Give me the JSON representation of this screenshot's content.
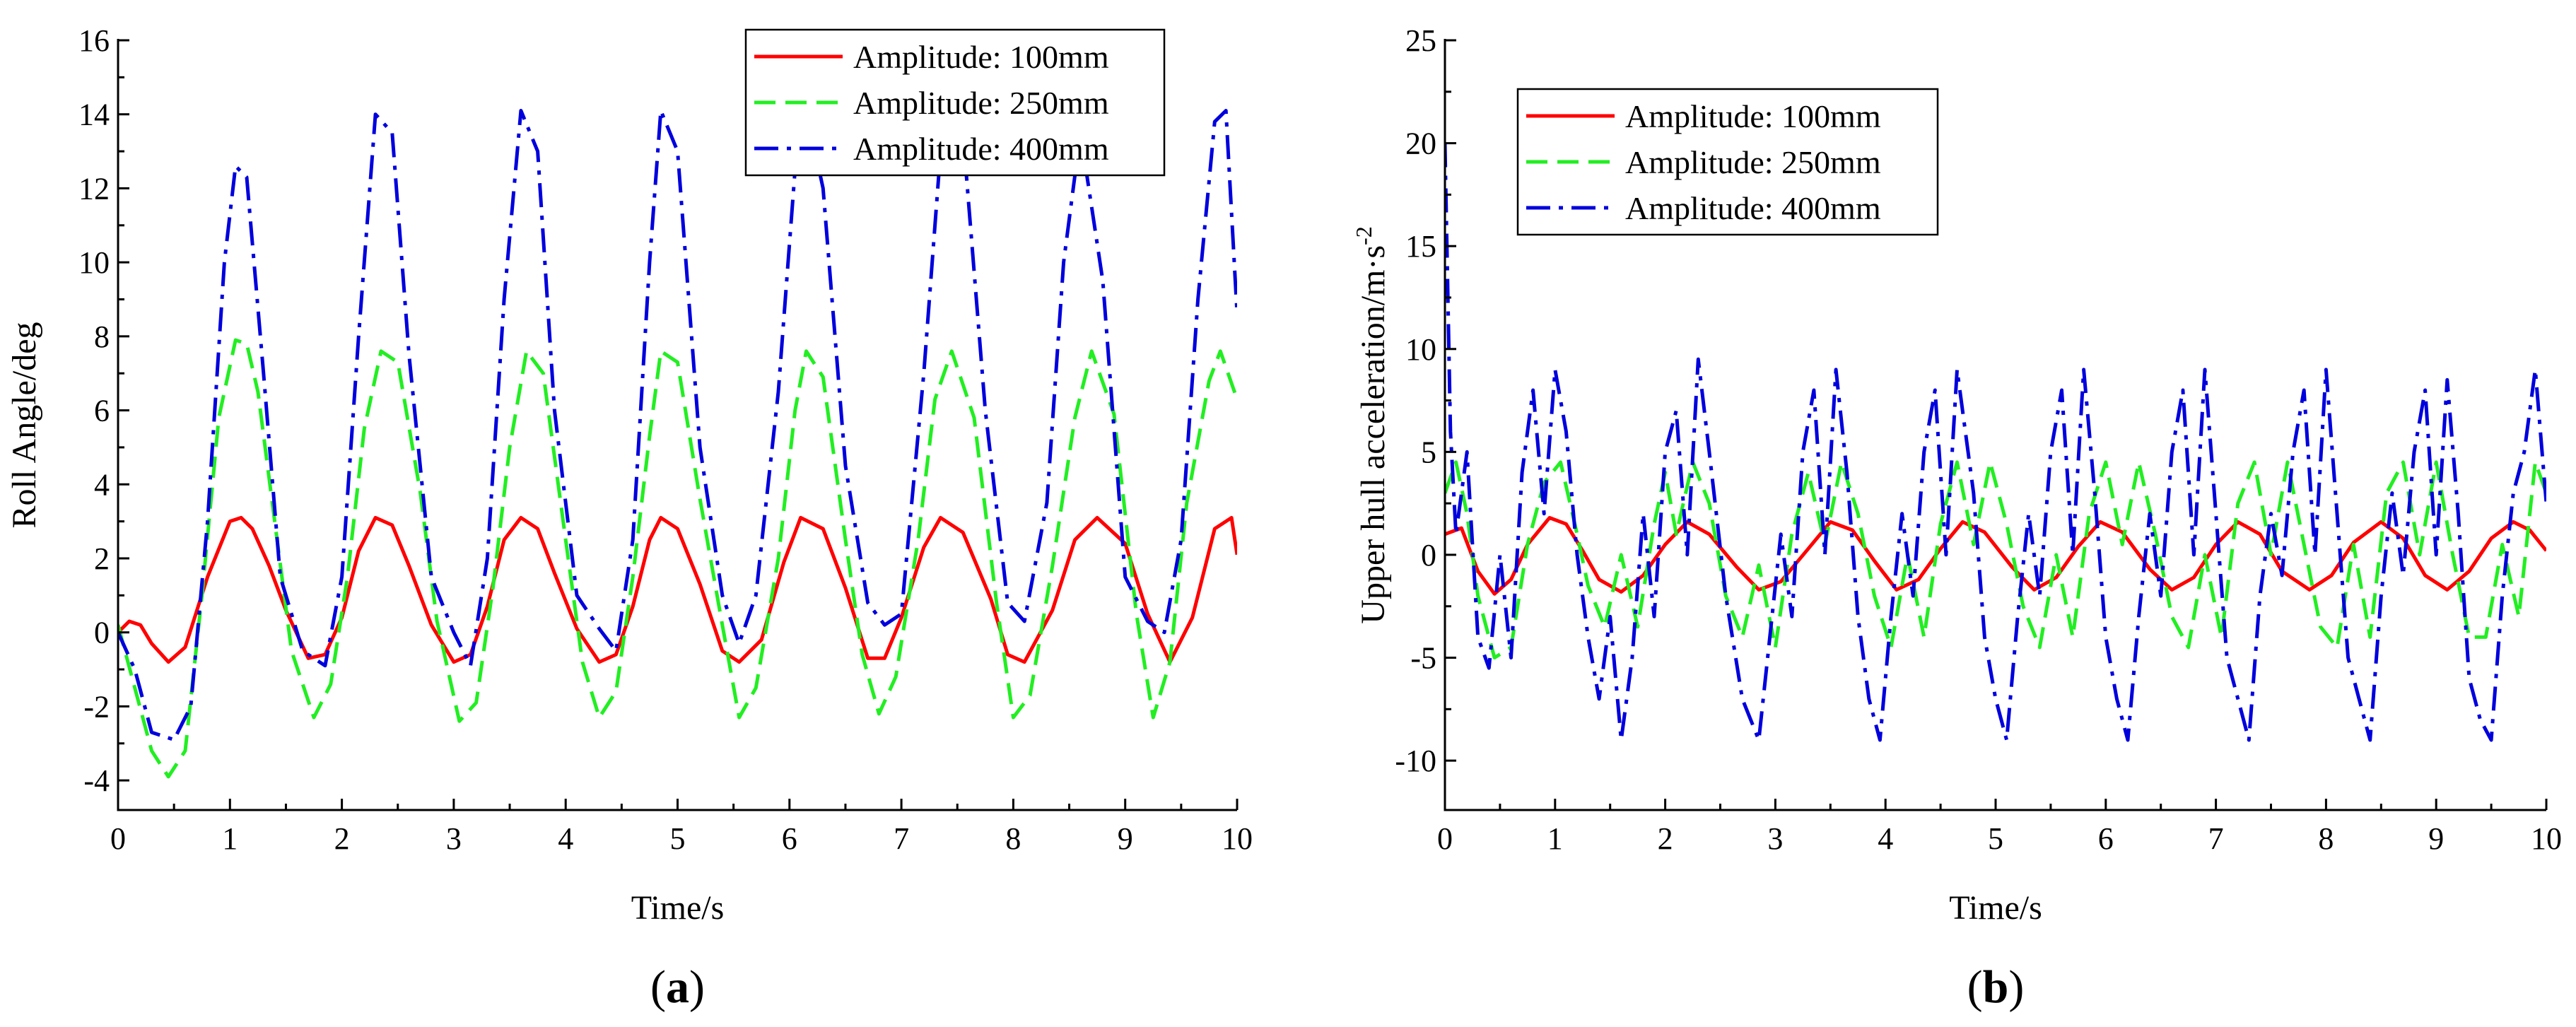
{
  "colors": {
    "red": "#ff0000",
    "green": "#22ee22",
    "blue": "#0000dd"
  },
  "chart_data": [
    {
      "id": "a",
      "panel_label": "a",
      "type": "line",
      "xlabel": "Time/s",
      "ylabel": "Roll Angle/deg",
      "xlim": [
        0,
        10
      ],
      "ylim": [
        -4.8,
        16
      ],
      "xticks": [
        0,
        1,
        2,
        3,
        4,
        5,
        6,
        7,
        8,
        9,
        10
      ],
      "yticks": [
        -4,
        -2,
        0,
        2,
        4,
        6,
        8,
        10,
        12,
        14,
        16
      ],
      "grid": false,
      "legend_position": "top-right",
      "series": [
        {
          "name": "Amplitude: 100mm",
          "color": "red",
          "dash": "solid",
          "x": [
            0,
            0.1,
            0.2,
            0.3,
            0.45,
            0.6,
            0.8,
            1.0,
            1.1,
            1.2,
            1.35,
            1.5,
            1.7,
            1.85,
            2.0,
            2.15,
            2.3,
            2.45,
            2.6,
            2.8,
            3.0,
            3.15,
            3.3,
            3.45,
            3.6,
            3.75,
            3.9,
            4.1,
            4.3,
            4.45,
            4.6,
            4.75,
            4.85,
            5.0,
            5.2,
            5.4,
            5.55,
            5.75,
            5.95,
            6.1,
            6.3,
            6.5,
            6.7,
            6.85,
            7.0,
            7.2,
            7.35,
            7.55,
            7.8,
            7.95,
            8.1,
            8.35,
            8.55,
            8.75,
            9.0,
            9.2,
            9.4,
            9.6,
            9.8,
            9.95,
            10.0
          ],
          "y": [
            0,
            0.3,
            0.2,
            -0.3,
            -0.8,
            -0.4,
            1.5,
            3.0,
            3.1,
            2.8,
            1.8,
            0.6,
            -0.7,
            -0.6,
            0.4,
            2.2,
            3.1,
            2.9,
            1.8,
            0.2,
            -0.8,
            -0.6,
            0.7,
            2.5,
            3.1,
            2.8,
            1.6,
            0.1,
            -0.8,
            -0.6,
            0.7,
            2.5,
            3.1,
            2.8,
            1.3,
            -0.5,
            -0.8,
            -0.2,
            1.9,
            3.1,
            2.8,
            1.2,
            -0.7,
            -0.7,
            0.4,
            2.3,
            3.1,
            2.7,
            0.9,
            -0.6,
            -0.8,
            0.6,
            2.5,
            3.1,
            2.4,
            0.5,
            -0.8,
            0.4,
            2.8,
            3.1,
            2.1
          ]
        },
        {
          "name": "Amplitude: 250mm",
          "color": "green",
          "dash": "dashed",
          "x": [
            0,
            0.15,
            0.3,
            0.45,
            0.6,
            0.75,
            0.9,
            1.05,
            1.15,
            1.25,
            1.4,
            1.55,
            1.75,
            1.9,
            2.05,
            2.2,
            2.35,
            2.5,
            2.7,
            2.85,
            3.05,
            3.2,
            3.35,
            3.5,
            3.65,
            3.8,
            4.0,
            4.15,
            4.3,
            4.45,
            4.6,
            4.75,
            4.85,
            5.0,
            5.2,
            5.4,
            5.55,
            5.7,
            5.9,
            6.05,
            6.15,
            6.3,
            6.5,
            6.65,
            6.8,
            6.95,
            7.15,
            7.3,
            7.45,
            7.65,
            7.85,
            8.0,
            8.15,
            8.35,
            8.55,
            8.7,
            8.9,
            9.1,
            9.25,
            9.4,
            9.55,
            9.75,
            9.85,
            10.0
          ],
          "y": [
            0.2,
            -1.5,
            -3.2,
            -3.9,
            -3.2,
            1.0,
            5.8,
            7.9,
            7.8,
            6.5,
            3.0,
            -0.5,
            -2.3,
            -1.4,
            1.5,
            5.5,
            7.6,
            7.3,
            3.8,
            0.3,
            -2.4,
            -1.9,
            1.2,
            5.0,
            7.6,
            7.0,
            2.5,
            -0.8,
            -2.3,
            -1.6,
            1.5,
            5.3,
            7.6,
            7.3,
            3.6,
            0.2,
            -2.3,
            -1.5,
            2.0,
            6.0,
            7.6,
            6.9,
            2.5,
            -0.6,
            -2.2,
            -1.2,
            2.5,
            6.3,
            7.6,
            5.8,
            0.8,
            -2.3,
            -1.7,
            1.8,
            5.8,
            7.6,
            5.9,
            0.5,
            -2.3,
            -0.8,
            3.5,
            6.8,
            7.6,
            6.3
          ]
        },
        {
          "name": "Amplitude: 400mm",
          "color": "blue",
          "dash": "dashdot",
          "x": [
            0,
            0.15,
            0.3,
            0.5,
            0.65,
            0.8,
            0.95,
            1.05,
            1.15,
            1.3,
            1.45,
            1.65,
            1.85,
            2.0,
            2.15,
            2.3,
            2.45,
            2.6,
            2.8,
            3.0,
            3.15,
            3.3,
            3.45,
            3.6,
            3.75,
            3.9,
            4.1,
            4.3,
            4.45,
            4.6,
            4.75,
            4.85,
            5.0,
            5.2,
            5.4,
            5.55,
            5.7,
            5.9,
            6.05,
            6.15,
            6.3,
            6.5,
            6.7,
            6.85,
            7.0,
            7.2,
            7.35,
            7.55,
            7.75,
            7.95,
            8.1,
            8.3,
            8.45,
            8.6,
            8.8,
            9.0,
            9.2,
            9.35,
            9.5,
            9.65,
            9.8,
            9.9,
            10.0
          ],
          "y": [
            0,
            -1.0,
            -2.7,
            -2.9,
            -2.0,
            3.0,
            10.0,
            12.6,
            12.3,
            7.0,
            1.5,
            -0.5,
            -0.9,
            1.5,
            8.0,
            14.0,
            13.5,
            7.5,
            1.5,
            0.0,
            -0.9,
            2.0,
            9.0,
            14.1,
            13.0,
            6.0,
            1.0,
            0.1,
            -0.5,
            2.5,
            10.0,
            14.1,
            13.0,
            5.0,
            1.0,
            -0.3,
            1.0,
            6.5,
            12.5,
            14.1,
            12.0,
            4.5,
            0.8,
            0.2,
            0.5,
            7.0,
            13.0,
            13.5,
            6.0,
            0.8,
            0.3,
            3.5,
            10.0,
            13.5,
            9.5,
            1.5,
            0.3,
            0.0,
            2.5,
            9.0,
            13.8,
            14.1,
            8.6
          ]
        }
      ]
    },
    {
      "id": "b",
      "panel_label": "b",
      "type": "line",
      "xlabel": "Time/s",
      "ylabel": "Upper hull acceleration/m·s",
      "ylabel_superscript": "-2",
      "xlim": [
        0,
        10
      ],
      "ylim": [
        -12.4,
        25
      ],
      "xticks": [
        0,
        1,
        2,
        3,
        4,
        5,
        6,
        7,
        8,
        9,
        10
      ],
      "yticks": [
        -10,
        -5,
        0,
        5,
        10,
        15,
        20,
        25
      ],
      "grid": false,
      "legend_position": "top-left",
      "series": [
        {
          "name": "Amplitude: 100mm",
          "color": "red",
          "dash": "solid",
          "x": [
            0,
            0.15,
            0.3,
            0.45,
            0.6,
            0.75,
            0.95,
            1.1,
            1.25,
            1.4,
            1.6,
            1.8,
            2.0,
            2.2,
            2.4,
            2.65,
            2.85,
            3.05,
            3.3,
            3.5,
            3.7,
            3.9,
            4.1,
            4.3,
            4.5,
            4.7,
            4.9,
            5.15,
            5.35,
            5.55,
            5.75,
            5.95,
            6.15,
            6.4,
            6.6,
            6.8,
            7.0,
            7.2,
            7.4,
            7.6,
            7.85,
            8.05,
            8.25,
            8.5,
            8.7,
            8.9,
            9.1,
            9.3,
            9.5,
            9.7,
            9.85,
            10.0
          ],
          "y": [
            1.0,
            1.3,
            -0.8,
            -1.9,
            -1.2,
            0.5,
            1.8,
            1.5,
            0.2,
            -1.2,
            -1.8,
            -1.0,
            0.5,
            1.6,
            1.0,
            -0.6,
            -1.7,
            -1.3,
            0.3,
            1.6,
            1.2,
            -0.3,
            -1.7,
            -1.2,
            0.3,
            1.6,
            1.1,
            -0.6,
            -1.7,
            -1.1,
            0.4,
            1.6,
            1.1,
            -0.7,
            -1.7,
            -1.1,
            0.5,
            1.6,
            1.0,
            -0.8,
            -1.7,
            -1.0,
            0.6,
            1.6,
            0.8,
            -1.0,
            -1.7,
            -0.8,
            0.8,
            1.6,
            1.2,
            0.2
          ]
        },
        {
          "name": "Amplitude: 250mm",
          "color": "green",
          "dash": "dashed",
          "x": [
            0,
            0.1,
            0.2,
            0.3,
            0.45,
            0.6,
            0.75,
            0.9,
            1.05,
            1.2,
            1.3,
            1.45,
            1.6,
            1.75,
            1.9,
            2.0,
            2.1,
            2.25,
            2.4,
            2.55,
            2.7,
            2.85,
            3.0,
            3.15,
            3.3,
            3.45,
            3.6,
            3.75,
            3.9,
            4.05,
            4.2,
            4.35,
            4.5,
            4.65,
            4.8,
            4.95,
            5.1,
            5.25,
            5.4,
            5.55,
            5.7,
            5.85,
            6.0,
            6.15,
            6.3,
            6.45,
            6.6,
            6.75,
            6.9,
            7.05,
            7.2,
            7.35,
            7.5,
            7.65,
            7.8,
            7.95,
            8.1,
            8.25,
            8.4,
            8.55,
            8.7,
            8.85,
            9.0,
            9.15,
            9.3,
            9.45,
            9.6,
            9.75,
            9.9,
            10.0
          ],
          "y": [
            3.0,
            4.5,
            2.0,
            -2.0,
            -5.0,
            -4.5,
            0.5,
            3.5,
            4.5,
            1.0,
            -1.5,
            -3.5,
            0.0,
            -3.5,
            1.5,
            4.0,
            1.0,
            4.5,
            2.5,
            -2.0,
            -4.0,
            -0.5,
            -4.5,
            1.0,
            4.0,
            0.5,
            4.5,
            2.0,
            -2.0,
            -4.5,
            0.0,
            -4.0,
            1.5,
            4.5,
            0.5,
            4.5,
            1.5,
            -2.5,
            -4.5,
            0.0,
            -4.0,
            2.0,
            4.5,
            0.5,
            4.5,
            1.0,
            -3.0,
            -4.5,
            0.0,
            -4.0,
            2.5,
            4.5,
            0.0,
            4.5,
            0.5,
            -3.5,
            -4.5,
            0.5,
            -4.0,
            3.0,
            4.5,
            0.0,
            4.5,
            0.0,
            -4.0,
            -4.0,
            0.5,
            -3.0,
            4.5,
            3.0
          ]
        },
        {
          "name": "Amplitude: 400mm",
          "color": "blue",
          "dash": "dashdot",
          "x": [
            0,
            0.05,
            0.1,
            0.2,
            0.3,
            0.4,
            0.5,
            0.6,
            0.7,
            0.8,
            0.9,
            1.0,
            1.1,
            1.2,
            1.3,
            1.4,
            1.5,
            1.6,
            1.7,
            1.8,
            1.9,
            2.0,
            2.1,
            2.2,
            2.3,
            2.4,
            2.55,
            2.7,
            2.85,
            2.95,
            3.05,
            3.15,
            3.25,
            3.35,
            3.45,
            3.55,
            3.65,
            3.75,
            3.85,
            3.95,
            4.05,
            4.15,
            4.25,
            4.35,
            4.45,
            4.55,
            4.65,
            4.8,
            4.9,
            5.0,
            5.1,
            5.2,
            5.3,
            5.4,
            5.5,
            5.6,
            5.7,
            5.8,
            5.9,
            6.0,
            6.1,
            6.2,
            6.3,
            6.4,
            6.5,
            6.6,
            6.7,
            6.8,
            6.9,
            7.0,
            7.1,
            7.2,
            7.3,
            7.4,
            7.5,
            7.6,
            7.7,
            7.8,
            7.9,
            8.0,
            8.1,
            8.2,
            8.3,
            8.4,
            8.5,
            8.6,
            8.7,
            8.8,
            8.9,
            9.0,
            9.1,
            9.2,
            9.3,
            9.4,
            9.5,
            9.6,
            9.7,
            9.8,
            9.9,
            10.0
          ],
          "y": [
            20.0,
            6.0,
            1.0,
            5.0,
            -4.0,
            -5.5,
            0.0,
            -5.0,
            4.0,
            8.0,
            2.0,
            9.0,
            6.0,
            0.0,
            -4.0,
            -7.0,
            -3.0,
            -9.0,
            -5.0,
            2.0,
            -3.0,
            5.0,
            7.0,
            0.0,
            9.5,
            5.0,
            -2.0,
            -7.0,
            -9.0,
            -4.0,
            1.0,
            -3.0,
            5.0,
            8.0,
            0.0,
            9.0,
            4.0,
            -3.0,
            -7.0,
            -9.0,
            -3.0,
            2.0,
            -2.0,
            5.0,
            8.0,
            0.0,
            9.0,
            3.0,
            -4.0,
            -7.0,
            -9.0,
            -3.0,
            2.0,
            -2.0,
            5.0,
            8.0,
            0.0,
            9.0,
            3.0,
            -4.0,
            -7.0,
            -9.0,
            -3.0,
            2.0,
            -2.0,
            5.0,
            8.0,
            0.0,
            9.0,
            2.0,
            -5.0,
            -7.0,
            -9.0,
            -2.0,
            2.0,
            -1.0,
            5.0,
            8.0,
            0.0,
            9.0,
            2.0,
            -5.0,
            -7.0,
            -9.0,
            -2.0,
            3.0,
            -1.0,
            5.0,
            8.0,
            0.0,
            8.5,
            2.0,
            -6.0,
            -8.0,
            -9.0,
            -2.0,
            3.0,
            5.0,
            9.0,
            2.5
          ]
        }
      ]
    }
  ]
}
